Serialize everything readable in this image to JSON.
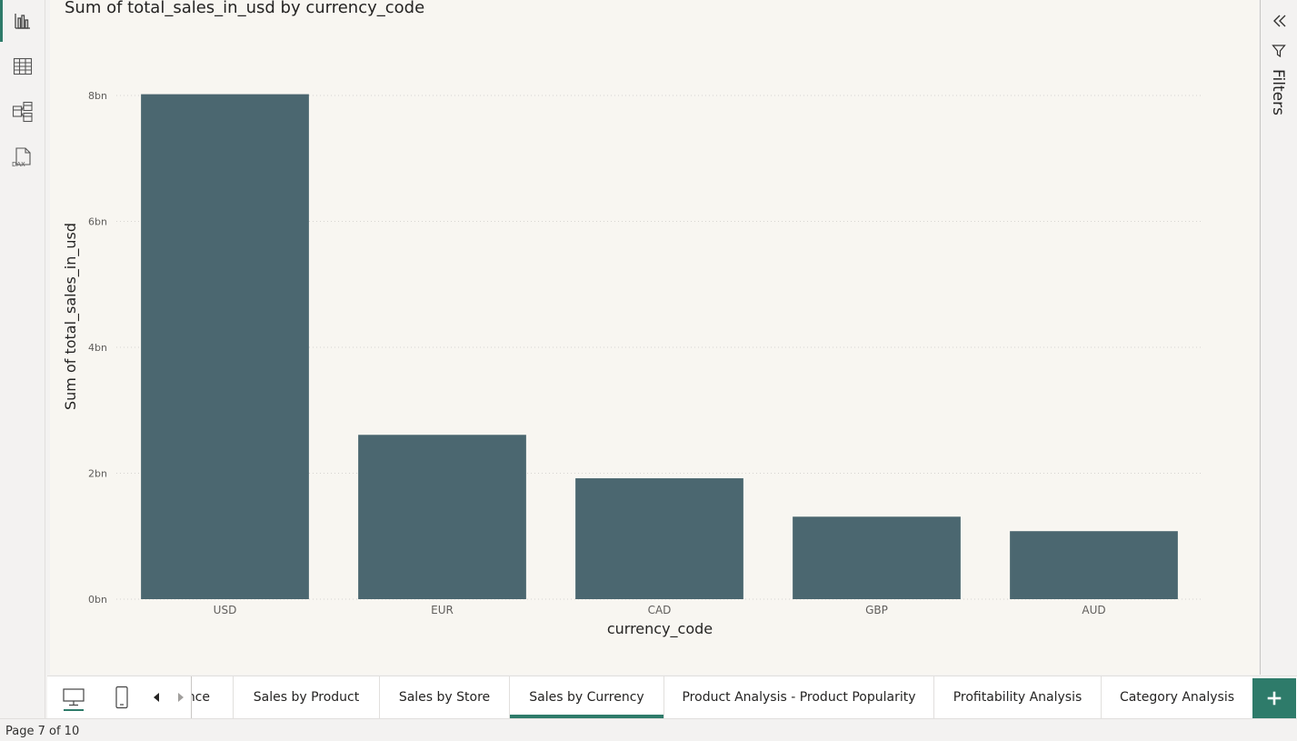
{
  "left_rail": {
    "items": [
      {
        "name": "report-view",
        "icon": "bar-chart-icon",
        "active": true
      },
      {
        "name": "table-view",
        "icon": "table-grid-icon",
        "active": false
      },
      {
        "name": "model-view",
        "icon": "model-icon",
        "active": false
      },
      {
        "name": "dax-query-view",
        "icon": "dax-icon",
        "icon_text": "DAX",
        "active": false
      }
    ]
  },
  "visual": {
    "title": "Sum of total_sales_in_usd by currency_code"
  },
  "chart_data": {
    "type": "bar",
    "title": "Sum of total_sales_in_usd by currency_code",
    "xlabel": "currency_code",
    "ylabel": "Sum of total_sales_in_usd",
    "categories": [
      "USD",
      "EUR",
      "CAD",
      "GBP",
      "AUD"
    ],
    "values": [
      8.02,
      2.61,
      1.92,
      1.31,
      1.08
    ],
    "unit_suffix": "bn",
    "ylim": [
      0,
      8
    ],
    "yticks": [
      0,
      2,
      4,
      6,
      8
    ],
    "ytick_labels": [
      "0bn",
      "2bn",
      "4bn",
      "6bn",
      "8bn"
    ],
    "grid": true,
    "bar_color": "#4b6770"
  },
  "filters_pane": {
    "label": "Filters",
    "collapse_icon": "double-chevron-left-icon",
    "filter_icon": "funnel-icon"
  },
  "tabs": {
    "nav": {
      "desktop_icon": "desktop-icon",
      "mobile_icon": "mobile-icon",
      "prev_icon": "caret-left-icon",
      "next_icon": "caret-right-icon"
    },
    "items": [
      {
        "label": "nce",
        "active": false
      },
      {
        "label": "Sales by Product",
        "active": false
      },
      {
        "label": "Sales by Store",
        "active": false
      },
      {
        "label": "Sales by Currency",
        "active": true
      },
      {
        "label": "Product Analysis - Product Popularity",
        "active": false
      },
      {
        "label": "Profitability Analysis",
        "active": false
      },
      {
        "label": "Category Analysis",
        "active": false
      }
    ],
    "add_icon": "plus-icon"
  },
  "status": {
    "page_text": "Page 7 of 10"
  },
  "colors": {
    "accent": "#2e7b6a",
    "bar": "#4b6770",
    "canvas_bg": "#f8f6f1"
  }
}
